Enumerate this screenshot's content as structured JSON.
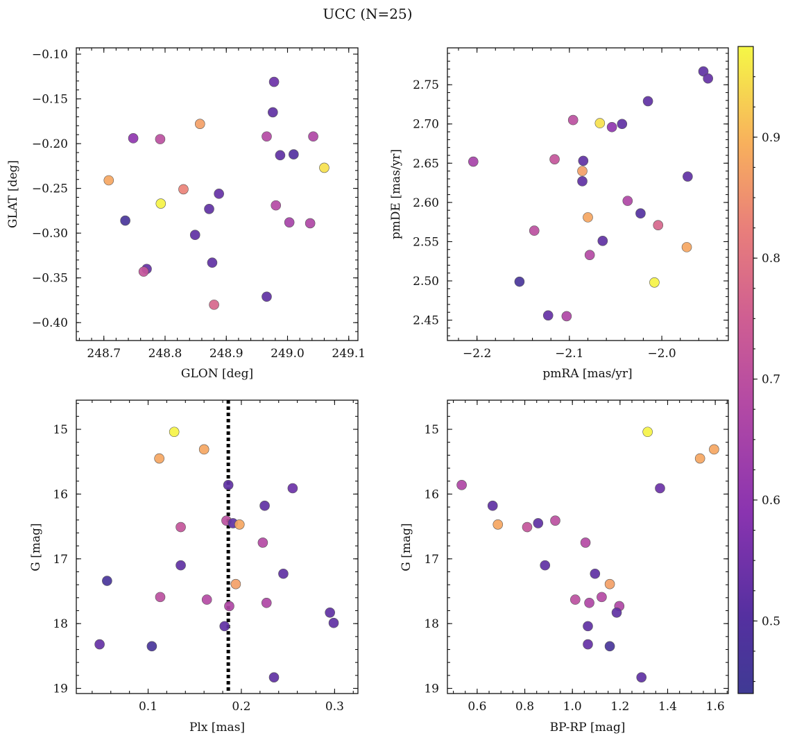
{
  "title": "UCC (N=25)",
  "chart_data": [
    {
      "id": "glon_glat",
      "type": "scatter",
      "xlabel": "GLON [deg]",
      "ylabel": "GLAT [deg]",
      "xlim": [
        248.655,
        249.115
      ],
      "ylim": [
        -0.42,
        -0.093
      ],
      "xticks": [
        248.7,
        248.8,
        248.9,
        249.0,
        249.1
      ],
      "xtick_labels": [
        "248.7",
        "248.8",
        "248.9",
        "249.0",
        "249.1"
      ],
      "yticks": [
        -0.1,
        -0.15,
        -0.2,
        -0.25,
        -0.3,
        -0.35,
        -0.4
      ],
      "ytick_labels": [
        "−0.10",
        "−0.15",
        "−0.20",
        "−0.25",
        "−0.30",
        "−0.35",
        "−0.40"
      ],
      "y_inverted": false,
      "x": [
        248.978,
        248.976,
        248.857,
        248.748,
        248.792,
        248.966,
        249.042,
        248.988,
        249.01,
        249.06,
        248.708,
        248.83,
        248.793,
        248.888,
        248.981,
        248.735,
        248.872,
        249.003,
        249.037,
        248.849,
        248.877,
        248.77,
        248.765,
        248.88,
        248.966
      ],
      "y": [
        -0.131,
        -0.165,
        -0.178,
        -0.194,
        -0.195,
        -0.192,
        -0.192,
        -0.213,
        -0.212,
        -0.227,
        -0.241,
        -0.251,
        -0.267,
        -0.256,
        -0.269,
        -0.286,
        -0.273,
        -0.288,
        -0.289,
        -0.302,
        -0.333,
        -0.34,
        -0.343,
        -0.38,
        -0.371
      ],
      "c": [
        0.54,
        0.52,
        0.87,
        0.6,
        0.7,
        0.68,
        0.67,
        0.52,
        0.5,
        0.95,
        0.88,
        0.83,
        0.97,
        0.53,
        0.68,
        0.47,
        0.52,
        0.65,
        0.67,
        0.52,
        0.52,
        0.53,
        0.72,
        0.77,
        0.52
      ]
    },
    {
      "id": "pm",
      "type": "scatter",
      "xlabel": "pmRA [mas/yr]",
      "ylabel": "pmDE [mas/yr]",
      "xlim": [
        -2.232,
        -1.928
      ],
      "ylim": [
        2.424,
        2.797
      ],
      "xticks": [
        -2.2,
        -2.1,
        -2.0
      ],
      "xtick_labels": [
        "−2.2",
        "−2.1",
        "−2.0"
      ],
      "yticks": [
        2.45,
        2.5,
        2.55,
        2.6,
        2.65,
        2.7,
        2.75
      ],
      "ytick_labels": [
        "2.45",
        "2.50",
        "2.55",
        "2.60",
        "2.65",
        "2.70",
        "2.75"
      ],
      "y_inverted": false,
      "x": [
        -1.955,
        -1.95,
        -2.015,
        -2.096,
        -2.067,
        -2.054,
        -2.043,
        -2.204,
        -2.116,
        -2.085,
        -2.086,
        -1.972,
        -2.086,
        -2.037,
        -2.023,
        -2.004,
        -2.138,
        -2.08,
        -2.064,
        -2.078,
        -1.973,
        -2.154,
        -2.008,
        -2.123,
        -2.103
      ],
      "y": [
        2.767,
        2.758,
        2.729,
        2.705,
        2.701,
        2.696,
        2.7,
        2.652,
        2.655,
        2.653,
        2.64,
        2.633,
        2.627,
        2.602,
        2.586,
        2.571,
        2.564,
        2.581,
        2.551,
        2.533,
        2.543,
        2.499,
        2.498,
        2.456,
        2.455
      ],
      "c": [
        0.52,
        0.53,
        0.52,
        0.7,
        0.95,
        0.6,
        0.52,
        0.65,
        0.72,
        0.52,
        0.87,
        0.52,
        0.52,
        0.67,
        0.5,
        0.77,
        0.7,
        0.88,
        0.52,
        0.68,
        0.88,
        0.47,
        0.97,
        0.53,
        0.67
      ]
    },
    {
      "id": "plx_g",
      "type": "scatter",
      "xlabel": "Plx [mas]",
      "ylabel": "G [mag]",
      "xlim": [
        0.023,
        0.325
      ],
      "ylim": [
        19.08,
        14.55
      ],
      "xticks": [
        0.1,
        0.2,
        0.3
      ],
      "xtick_labels": [
        "0.1",
        "0.2",
        "0.3"
      ],
      "yticks": [
        15,
        16,
        17,
        18,
        19
      ],
      "ytick_labels": [
        "15",
        "16",
        "17",
        "18",
        "19"
      ],
      "y_inverted": true,
      "vline": 0.186,
      "x": [
        0.128,
        0.112,
        0.16,
        0.186,
        0.255,
        0.225,
        0.184,
        0.191,
        0.198,
        0.135,
        0.223,
        0.135,
        0.245,
        0.056,
        0.194,
        0.113,
        0.163,
        0.227,
        0.187,
        0.295,
        0.299,
        0.182,
        0.048,
        0.104,
        0.235
      ],
      "y": [
        15.04,
        15.45,
        15.31,
        15.86,
        15.91,
        16.18,
        16.41,
        16.45,
        16.47,
        16.51,
        16.75,
        17.1,
        17.23,
        17.34,
        17.39,
        17.59,
        17.63,
        17.68,
        17.73,
        17.83,
        17.99,
        18.04,
        18.32,
        18.35,
        18.83
      ],
      "c": [
        0.97,
        0.88,
        0.88,
        0.52,
        0.54,
        0.52,
        0.7,
        0.52,
        0.88,
        0.72,
        0.68,
        0.52,
        0.52,
        0.47,
        0.87,
        0.7,
        0.68,
        0.67,
        0.67,
        0.52,
        0.52,
        0.52,
        0.53,
        0.47,
        0.52
      ]
    },
    {
      "id": "bprp_g",
      "type": "scatter",
      "xlabel": "BP-RP [mag]",
      "ylabel": "G [mag]",
      "xlim": [
        0.475,
        1.655
      ],
      "ylim": [
        19.08,
        14.55
      ],
      "xticks": [
        0.6,
        0.8,
        1.0,
        1.2,
        1.4,
        1.6
      ],
      "xtick_labels": [
        "0.6",
        "0.8",
        "1.0",
        "1.2",
        "1.4",
        "1.6"
      ],
      "yticks": [
        15,
        16,
        17,
        18,
        19
      ],
      "ytick_labels": [
        "15",
        "16",
        "17",
        "18",
        "19"
      ],
      "y_inverted": true,
      "x": [
        1.316,
        1.536,
        1.595,
        0.535,
        1.368,
        0.665,
        0.928,
        0.856,
        0.687,
        0.81,
        1.055,
        0.885,
        1.095,
        1.157,
        1.012,
        1.123,
        1.197,
        1.071,
        1.186,
        1.065,
        1.065,
        1.157,
        1.29
      ],
      "y": [
        15.04,
        15.45,
        15.31,
        15.86,
        15.91,
        16.18,
        16.41,
        16.45,
        16.47,
        16.51,
        16.75,
        17.1,
        17.23,
        17.39,
        17.63,
        17.59,
        17.73,
        17.68,
        17.83,
        18.04,
        18.32,
        18.35,
        18.83
      ],
      "c": [
        0.97,
        0.88,
        0.88,
        0.67,
        0.54,
        0.52,
        0.7,
        0.52,
        0.88,
        0.72,
        0.68,
        0.52,
        0.52,
        0.87,
        0.7,
        0.68,
        0.67,
        0.67,
        0.52,
        0.52,
        0.53,
        0.47,
        0.52
      ]
    }
  ],
  "colorbar": {
    "colormap": "plasma",
    "range": [
      0.44,
      0.975
    ],
    "ticks": [
      0.5,
      0.6,
      0.7,
      0.8,
      0.9
    ],
    "tick_labels": [
      "0.5",
      "0.6",
      "0.7",
      "0.8",
      "0.9"
    ]
  }
}
